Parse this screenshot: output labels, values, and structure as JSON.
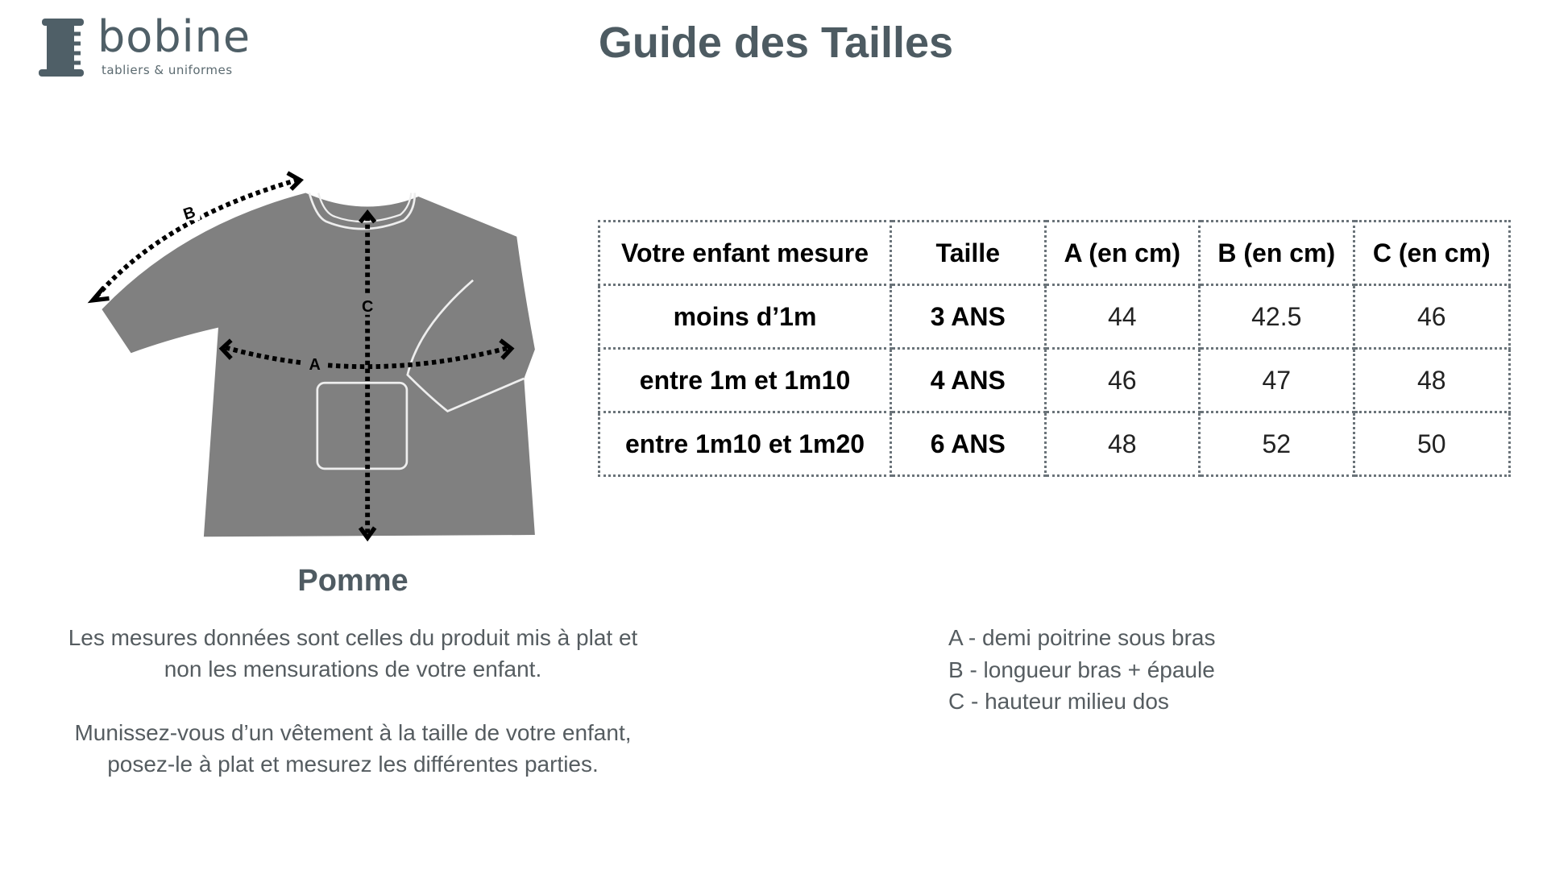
{
  "logo": {
    "name": "bobine",
    "tagline": "tabliers & uniformes"
  },
  "title": "Guide des Tailles",
  "diagram": {
    "labels": [
      "A",
      "B",
      "C"
    ]
  },
  "table": {
    "headers": [
      "Votre enfant mesure",
      "Taille",
      "A (en cm)",
      "B (en cm)",
      "C (en cm)"
    ],
    "rows": [
      [
        "moins d’1m",
        "3 ANS",
        "44",
        "42.5",
        "46"
      ],
      [
        "entre 1m et 1m10",
        "4 ANS",
        "46",
        "47",
        "48"
      ],
      [
        "entre 1m10 et 1m20",
        "6 ANS",
        "48",
        "52",
        "50"
      ]
    ]
  },
  "product": "Pomme",
  "notes": [
    [
      "Les mesures données sont celles du produit mis à plat et",
      "non les mensurations de votre enfant."
    ],
    [
      "Munissez-vous d’un vêtement à la taille de votre enfant,",
      "posez-le à plat et mesurez les différentes parties."
    ]
  ],
  "legend": [
    "A - demi poitrine sous bras",
    "B - longueur bras + épaule",
    "C - hauteur milieu dos"
  ]
}
